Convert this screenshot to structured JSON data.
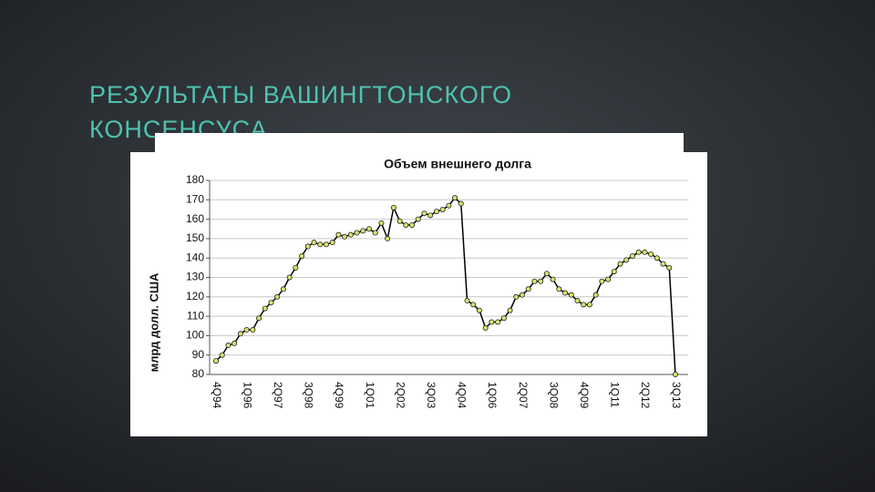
{
  "slide": {
    "title_lines": [
      "РЕЗУЛЬТАТЫ ВАШИНГТОНСКОГО",
      "КОНСЕНСУСА"
    ]
  },
  "chart_data": {
    "type": "line",
    "title": "Объем внешнего долга",
    "y_label": "млрд долл. США",
    "categories": [
      "4Q94",
      null,
      null,
      null,
      null,
      "1Q96",
      null,
      null,
      null,
      null,
      "2Q97",
      null,
      null,
      null,
      null,
      "3Q98",
      null,
      null,
      null,
      null,
      "4Q99",
      null,
      null,
      null,
      null,
      "1Q01",
      null,
      null,
      null,
      null,
      "2Q02",
      null,
      null,
      null,
      null,
      "3Q03",
      null,
      null,
      null,
      null,
      "4Q04",
      null,
      null,
      null,
      null,
      "1Q06",
      null,
      null,
      null,
      null,
      "2Q07",
      null,
      null,
      null,
      null,
      "3Q08",
      null,
      null,
      null,
      null,
      "4Q09",
      null,
      null,
      null,
      null,
      "1Q11",
      null,
      null,
      null,
      null,
      "2Q12",
      null,
      null,
      null,
      null,
      "3Q13"
    ],
    "values": [
      87,
      90,
      95,
      96,
      101,
      103,
      103,
      109,
      114,
      117,
      120,
      124,
      130,
      135,
      141,
      146,
      148,
      147,
      147,
      148,
      152,
      151,
      152,
      153,
      154,
      155,
      153,
      158,
      150,
      166,
      159,
      157,
      157,
      160,
      163,
      162,
      164,
      165,
      167,
      171,
      168,
      118,
      116,
      113,
      104,
      107,
      107,
      109,
      113,
      120,
      121,
      124,
      128,
      128,
      132,
      129,
      124,
      122,
      121,
      118,
      116,
      116,
      121,
      128,
      129,
      133,
      137,
      139,
      141,
      143,
      143,
      142,
      140,
      137,
      135,
      80
    ],
    "line_color": "#000000",
    "marker_color": "#d9e36a",
    "ylim": [
      80,
      180
    ],
    "yticks": [
      80,
      90,
      100,
      110,
      120,
      130,
      140,
      150,
      160,
      170,
      180
    ],
    "grid": true
  }
}
